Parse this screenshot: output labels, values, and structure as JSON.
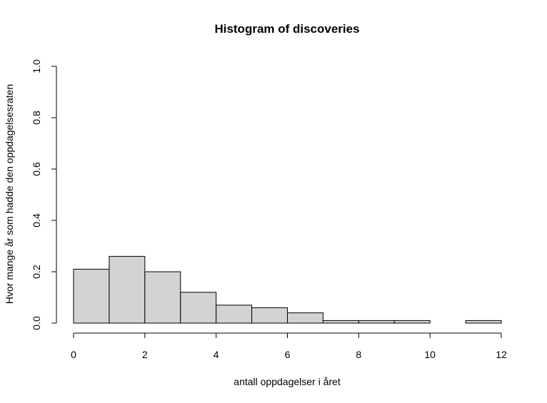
{
  "chart_data": {
    "type": "bar",
    "title": "Histogram of discoveries",
    "xlabel": "antall oppdagelser i året",
    "ylabel": "Hvor mange år som hadde den oppdagelsesraten",
    "bin_edges": [
      0,
      1,
      2,
      3,
      4,
      5,
      6,
      7,
      8,
      9,
      10,
      11,
      12
    ],
    "values": [
      0.21,
      0.26,
      0.2,
      0.12,
      0.07,
      0.06,
      0.04,
      0.01,
      0.01,
      0.01,
      0.0,
      0.01
    ],
    "xlim": [
      0,
      12
    ],
    "ylim": [
      0,
      1
    ],
    "x_ticks": [
      "0",
      "2",
      "4",
      "6",
      "8",
      "10",
      "12"
    ],
    "y_ticks": [
      "0.0",
      "0.2",
      "0.4",
      "0.6",
      "0.8",
      "1.0"
    ],
    "bar_color": "#d3d3d3",
    "grid": false
  }
}
